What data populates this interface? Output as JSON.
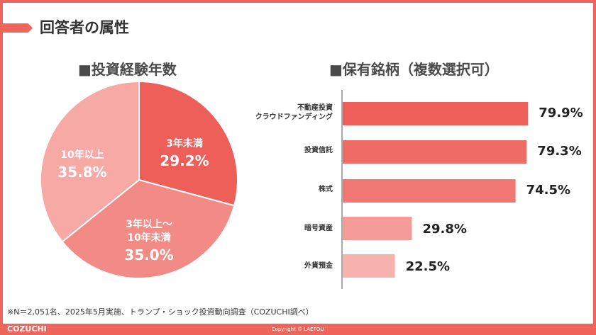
{
  "page": {
    "title": "回答者の属性",
    "footnote": "※N＝2,051名、2025年5月実施、トランプ・ショック投資動向調査（COZUCHI調べ）",
    "brand": "COZUCHI",
    "copyright": "Copyright © LAETOLI"
  },
  "colors": {
    "accent": "#f0655b",
    "pie": [
      "#ee5f59",
      "#f28a85",
      "#f7aaa5"
    ],
    "bars": [
      "#ee5f59",
      "#ef6c66",
      "#f07772",
      "#f59c98",
      "#f8b2ae"
    ]
  },
  "chart_data": [
    {
      "type": "pie",
      "title": "■投資経験年数",
      "slices": [
        {
          "name": "3年未満",
          "value": 29.2,
          "label": "29.2%"
        },
        {
          "name": "3年以上～10年未満",
          "name_lines": [
            "3年以上～",
            "10年未満"
          ],
          "value": 35.0,
          "label": "35.0%"
        },
        {
          "name": "10年以上",
          "value": 35.8,
          "label": "35.8%"
        }
      ]
    },
    {
      "type": "bar",
      "orientation": "horizontal",
      "title": "■保有銘柄（複数選択可）",
      "categories": [
        {
          "name": "不動産投資クラウドファンディング",
          "lines": [
            "不動産投資",
            "クラウドファンディング"
          ]
        },
        {
          "name": "投資信託",
          "lines": [
            "投資信託"
          ]
        },
        {
          "name": "株式",
          "lines": [
            "株式"
          ]
        },
        {
          "name": "暗号資産",
          "lines": [
            "暗号資産"
          ]
        },
        {
          "name": "外貨預金",
          "lines": [
            "外貨預金"
          ]
        }
      ],
      "values": [
        79.9,
        79.3,
        74.5,
        29.8,
        22.5
      ],
      "value_labels": [
        "79.9%",
        "79.3%",
        "74.5%",
        "29.8%",
        "22.5%"
      ],
      "xlim": [
        0,
        100
      ],
      "grid": false
    }
  ]
}
